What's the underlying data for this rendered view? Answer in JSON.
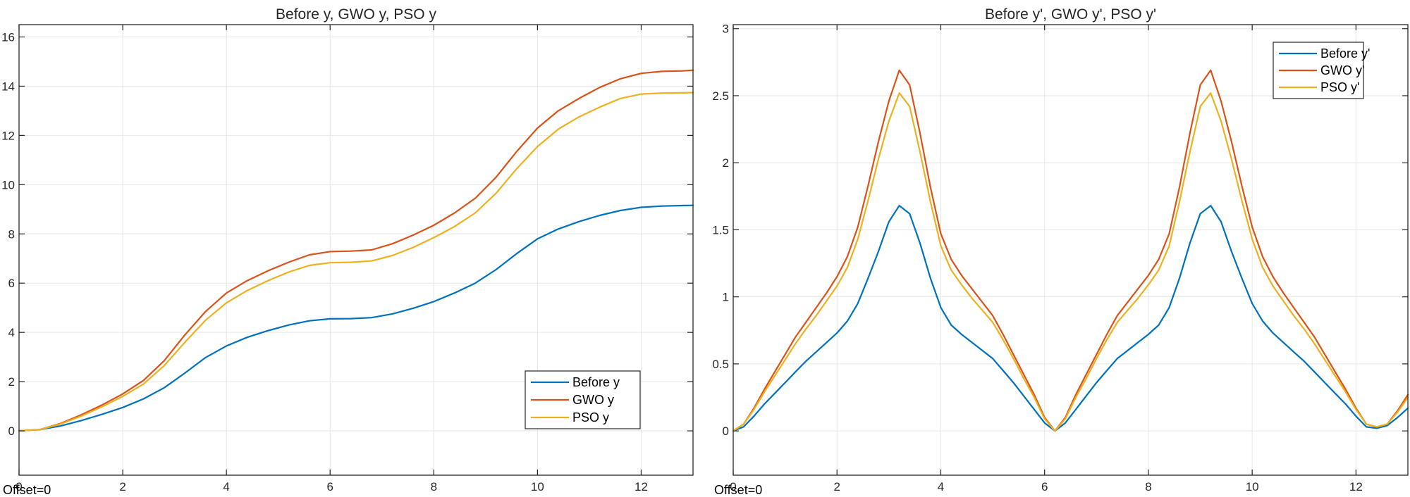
{
  "chart_data": [
    {
      "type": "line",
      "title": "Before y, GWO y, PSO y",
      "xlabel": "",
      "ylabel": "",
      "xlim": [
        0,
        13
      ],
      "ylim": [
        -1.8,
        16.5
      ],
      "xticks": [
        0,
        2,
        4,
        6,
        8,
        10,
        12
      ],
      "xtick_labels": [
        "0",
        "2",
        "4",
        "6",
        "8",
        "10",
        "12"
      ],
      "yticks": [
        0,
        2,
        4,
        6,
        8,
        10,
        12,
        14,
        16
      ],
      "ytick_labels": [
        "0",
        "2",
        "4",
        "6",
        "8",
        "10",
        "12",
        "14",
        "16"
      ],
      "grid": true,
      "legend_position": "bottom-right",
      "offset_label": "Offset=0",
      "x": [
        0,
        0.4,
        0.8,
        1.2,
        1.6,
        2.0,
        2.4,
        2.8,
        3.2,
        3.6,
        4.0,
        4.4,
        4.8,
        5.2,
        5.6,
        6.0,
        6.4,
        6.8,
        7.2,
        7.6,
        8.0,
        8.4,
        8.8,
        9.2,
        9.6,
        10.0,
        10.4,
        10.8,
        11.2,
        11.6,
        12.0,
        12.4,
        12.8,
        13.0
      ],
      "series": [
        {
          "name": "Before y",
          "color": "#0072BD",
          "values": [
            0,
            0.05,
            0.2,
            0.42,
            0.67,
            0.95,
            1.3,
            1.75,
            2.35,
            2.98,
            3.45,
            3.8,
            4.07,
            4.3,
            4.47,
            4.55,
            4.56,
            4.6,
            4.75,
            4.98,
            5.25,
            5.6,
            6.0,
            6.55,
            7.2,
            7.8,
            8.2,
            8.5,
            8.75,
            8.95,
            9.08,
            9.13,
            9.15,
            9.16
          ]
        },
        {
          "name": "GWO y",
          "color": "#D95319",
          "values": [
            0,
            0.05,
            0.3,
            0.65,
            1.05,
            1.5,
            2.05,
            2.85,
            3.9,
            4.85,
            5.6,
            6.1,
            6.5,
            6.85,
            7.15,
            7.28,
            7.3,
            7.35,
            7.6,
            7.95,
            8.35,
            8.85,
            9.45,
            10.3,
            11.35,
            12.3,
            13.0,
            13.5,
            13.95,
            14.3,
            14.52,
            14.6,
            14.62,
            14.65
          ]
        },
        {
          "name": "PSO y",
          "color": "#EDB120",
          "values": [
            0,
            0.05,
            0.28,
            0.6,
            0.98,
            1.4,
            1.9,
            2.65,
            3.6,
            4.5,
            5.2,
            5.7,
            6.1,
            6.45,
            6.72,
            6.83,
            6.85,
            6.9,
            7.12,
            7.45,
            7.85,
            8.3,
            8.85,
            9.65,
            10.65,
            11.55,
            12.25,
            12.75,
            13.15,
            13.5,
            13.68,
            13.72,
            13.73,
            13.74
          ]
        }
      ]
    },
    {
      "type": "line",
      "title": "Before y', GWO y', PSO y'",
      "xlabel": "",
      "ylabel": "",
      "xlim": [
        0,
        13
      ],
      "ylim": [
        -0.33,
        3.03
      ],
      "xticks": [
        0,
        2,
        4,
        6,
        8,
        10,
        12
      ],
      "xtick_labels": [
        "0",
        "2",
        "4",
        "6",
        "8",
        "10",
        "12"
      ],
      "yticks": [
        0,
        0.5,
        1,
        1.5,
        2,
        2.5,
        3
      ],
      "ytick_labels": [
        "0",
        "0.5",
        "1",
        "1.5",
        "2",
        "2.5",
        "3"
      ],
      "grid": true,
      "legend_position": "top-right",
      "offset_label": "Offset=0",
      "x": [
        0,
        0.2,
        0.4,
        0.6,
        0.8,
        1.0,
        1.2,
        1.4,
        1.6,
        1.8,
        2.0,
        2.2,
        2.4,
        2.6,
        2.8,
        3.0,
        3.2,
        3.4,
        3.6,
        3.8,
        4.0,
        4.2,
        4.4,
        4.6,
        4.8,
        5.0,
        5.2,
        5.4,
        5.6,
        5.8,
        6.0,
        6.2,
        6.4,
        6.6,
        6.8,
        7.0,
        7.2,
        7.4,
        7.6,
        7.8,
        8.0,
        8.2,
        8.4,
        8.6,
        8.8,
        9.0,
        9.2,
        9.4,
        9.6,
        9.8,
        10.0,
        10.2,
        10.4,
        10.6,
        10.8,
        11.0,
        11.2,
        11.4,
        11.6,
        11.8,
        12.0,
        12.2,
        12.4,
        12.6,
        12.8,
        13.0
      ],
      "series": [
        {
          "name": "Before y'",
          "color": "#0072BD",
          "values": [
            0.0,
            0.03,
            0.11,
            0.2,
            0.28,
            0.36,
            0.44,
            0.52,
            0.59,
            0.66,
            0.73,
            0.82,
            0.95,
            1.14,
            1.34,
            1.56,
            1.68,
            1.62,
            1.4,
            1.14,
            0.92,
            0.79,
            0.72,
            0.66,
            0.6,
            0.54,
            0.45,
            0.36,
            0.26,
            0.16,
            0.06,
            0.0,
            0.06,
            0.16,
            0.26,
            0.36,
            0.45,
            0.54,
            0.6,
            0.66,
            0.72,
            0.79,
            0.92,
            1.14,
            1.4,
            1.62,
            1.68,
            1.56,
            1.34,
            1.14,
            0.95,
            0.82,
            0.73,
            0.66,
            0.59,
            0.52,
            0.44,
            0.36,
            0.28,
            0.2,
            0.11,
            0.03,
            0.02,
            0.04,
            0.1,
            0.17
          ]
        },
        {
          "name": "GWO y'",
          "color": "#D95319",
          "values": [
            0.0,
            0.05,
            0.17,
            0.31,
            0.44,
            0.57,
            0.7,
            0.81,
            0.92,
            1.03,
            1.15,
            1.3,
            1.52,
            1.83,
            2.16,
            2.46,
            2.69,
            2.58,
            2.22,
            1.82,
            1.47,
            1.28,
            1.16,
            1.06,
            0.96,
            0.86,
            0.72,
            0.57,
            0.42,
            0.27,
            0.1,
            0.0,
            0.1,
            0.27,
            0.42,
            0.57,
            0.72,
            0.86,
            0.96,
            1.06,
            1.16,
            1.28,
            1.47,
            1.82,
            2.22,
            2.58,
            2.69,
            2.46,
            2.16,
            1.83,
            1.52,
            1.3,
            1.15,
            1.03,
            0.92,
            0.81,
            0.7,
            0.57,
            0.44,
            0.31,
            0.17,
            0.05,
            0.03,
            0.05,
            0.15,
            0.27
          ]
        },
        {
          "name": "PSO y'",
          "color": "#EDB120",
          "values": [
            0.0,
            0.05,
            0.16,
            0.29,
            0.41,
            0.53,
            0.65,
            0.76,
            0.86,
            0.97,
            1.08,
            1.22,
            1.43,
            1.72,
            2.03,
            2.31,
            2.52,
            2.42,
            2.08,
            1.71,
            1.38,
            1.2,
            1.09,
            0.99,
            0.9,
            0.81,
            0.68,
            0.54,
            0.39,
            0.25,
            0.09,
            0.0,
            0.09,
            0.25,
            0.39,
            0.54,
            0.68,
            0.81,
            0.9,
            0.99,
            1.09,
            1.2,
            1.38,
            1.71,
            2.08,
            2.42,
            2.52,
            2.31,
            2.03,
            1.72,
            1.43,
            1.22,
            1.08,
            0.97,
            0.86,
            0.76,
            0.65,
            0.53,
            0.41,
            0.29,
            0.16,
            0.05,
            0.03,
            0.05,
            0.14,
            0.25
          ]
        }
      ]
    }
  ]
}
